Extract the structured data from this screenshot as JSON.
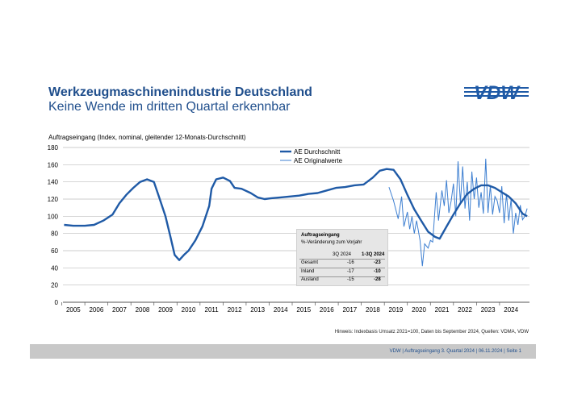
{
  "header": {
    "title": "Werkzeugmaschinenindustrie Deutschland",
    "subtitle": "Keine Wende im dritten Quartal erkennbar",
    "logo_text": "VDW"
  },
  "chart_data": {
    "type": "line",
    "ylabel": "Auftragseingang (Index, nominal, gleitender 12-Monats-Durchschnitt)",
    "ylim": [
      0,
      180
    ],
    "yticks": [
      0,
      20,
      40,
      60,
      80,
      100,
      120,
      140,
      160,
      180
    ],
    "xlim": [
      2004.55,
      2024.8
    ],
    "year_labels": [
      "2005",
      "2006",
      "2007",
      "2008",
      "2009",
      "2010",
      "2011",
      "2012",
      "2013",
      "2014",
      "2015",
      "2016",
      "2017",
      "2018",
      "2019",
      "2020",
      "2021",
      "2022",
      "2023",
      "2024"
    ],
    "grid": true,
    "legend_position": "top-center",
    "series": [
      {
        "name": "AE Durchschnitt",
        "color": "#1f5aa6",
        "x": [
          2004.6,
          2005.0,
          2005.5,
          2005.9,
          2006.3,
          2006.7,
          2007.0,
          2007.3,
          2007.6,
          2007.9,
          2008.2,
          2008.5,
          2008.7,
          2009.0,
          2009.2,
          2009.4,
          2009.6,
          2009.8,
          2010.0,
          2010.3,
          2010.6,
          2010.9,
          2011.0,
          2011.2,
          2011.5,
          2011.8,
          2012.0,
          2012.3,
          2012.7,
          2013.0,
          2013.3,
          2013.6,
          2014.0,
          2014.4,
          2014.8,
          2015.2,
          2015.6,
          2016.0,
          2016.4,
          2016.8,
          2017.2,
          2017.6,
          2018.0,
          2018.3,
          2018.6,
          2018.9,
          2019.2,
          2019.5,
          2019.8,
          2020.1,
          2020.4,
          2020.7,
          2020.9,
          2021.2,
          2021.5,
          2021.8,
          2022.1,
          2022.4,
          2022.7,
          2023.0,
          2023.3,
          2023.6,
          2023.9,
          2024.2,
          2024.5,
          2024.7
        ],
        "values": [
          90,
          89,
          89,
          90,
          95,
          102,
          115,
          125,
          133,
          140,
          143,
          140,
          124,
          100,
          78,
          55,
          49,
          55,
          60,
          72,
          88,
          112,
          132,
          143,
          145,
          141,
          133,
          132,
          127,
          122,
          120,
          121,
          122,
          123,
          124,
          126,
          127,
          130,
          133,
          134,
          136,
          137,
          145,
          153,
          155,
          154,
          143,
          125,
          108,
          95,
          82,
          76,
          74,
          88,
          102,
          115,
          126,
          132,
          136,
          136,
          133,
          128,
          123,
          115,
          103,
          100
        ]
      },
      {
        "name": "AE Originalwerte",
        "color": "#3d7fd1",
        "x": [
          2018.7,
          2018.9,
          2019.1,
          2019.25,
          2019.35,
          2019.5,
          2019.6,
          2019.7,
          2019.8,
          2019.9,
          2020.05,
          2020.15,
          2020.25,
          2020.4,
          2020.5,
          2020.6,
          2020.75,
          2020.85,
          2021.0,
          2021.1,
          2021.2,
          2021.3,
          2021.4,
          2021.5,
          2021.6,
          2021.7,
          2021.8,
          2021.9,
          2022.0,
          2022.1,
          2022.2,
          2022.3,
          2022.4,
          2022.5,
          2022.6,
          2022.7,
          2022.8,
          2022.9,
          2023.0,
          2023.1,
          2023.2,
          2023.3,
          2023.4,
          2023.5,
          2023.6,
          2023.7,
          2023.8,
          2023.9,
          2024.0,
          2024.1,
          2024.2,
          2024.3,
          2024.4,
          2024.5,
          2024.6,
          2024.7
        ],
        "values": [
          134,
          118,
          97,
          123,
          88,
          105,
          85,
          100,
          80,
          95,
          72,
          42,
          68,
          63,
          72,
          70,
          128,
          95,
          130,
          112,
          142,
          104,
          118,
          138,
          100,
          164,
          115,
          158,
          109,
          140,
          95,
          152,
          120,
          145,
          110,
          128,
          103,
          167,
          104,
          136,
          102,
          123,
          118,
          104,
          135,
          92,
          126,
          95,
          120,
          80,
          104,
          90,
          113,
          96,
          100,
          109
        ]
      }
    ],
    "table": {
      "title": "Auftragseingang",
      "subtitle": "%-Veränderung zum Vorjahr",
      "columns": [
        "3Q 2024",
        "1-3Q 2024"
      ],
      "rows": [
        {
          "label": "Gesamt",
          "q": "-16",
          "ytd": "-23"
        },
        {
          "label": "Inland",
          "q": "-17",
          "ytd": "-10"
        },
        {
          "label": "Ausland",
          "q": "-15",
          "ytd": "-28"
        }
      ]
    }
  },
  "footnote": "Hinweis: Indexbasis Umsatz 2021=100, Daten bis September 2024, Quellen: VDMA, VDW",
  "footer": "VDW  | Auftragseingang 3. Quartal 2024 |   06.11.2024    |  Seite  1"
}
